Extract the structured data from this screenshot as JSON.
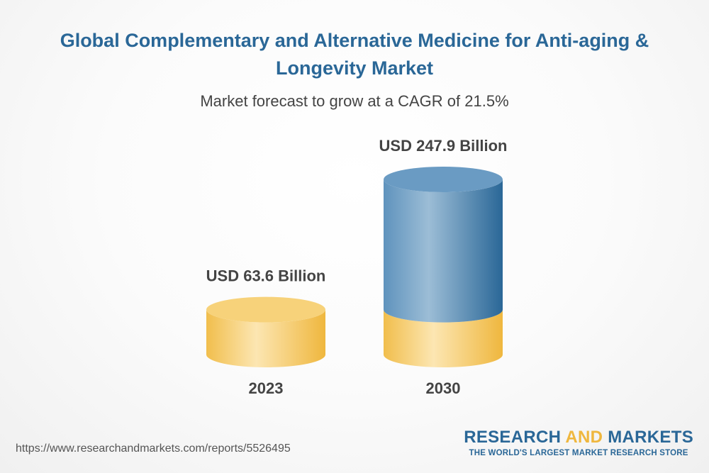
{
  "header": {
    "title": "Global Complementary and Alternative Medicine for Anti-aging & Longevity Market",
    "subtitle": "Market forecast to grow at a CAGR of 21.5%"
  },
  "chart_data": {
    "type": "bar",
    "title": "Global Complementary and Alternative Medicine for Anti-aging & Longevity Market",
    "subtitle": "Market forecast to grow at a CAGR of 21.5%",
    "categories": [
      "2023",
      "2030"
    ],
    "values": [
      63.6,
      247.9
    ],
    "data_labels": [
      "USD 63.6 Billion",
      "USD 247.9 Billion"
    ],
    "unit": "USD Billion",
    "cagr_percent": 21.5,
    "xlabel": "",
    "ylabel": "",
    "grid": false,
    "colors": {
      "base": "#efb73e",
      "base_light": "#fbe1a4",
      "growth": "#2c6a9b",
      "growth_light": "#8fb4d1"
    }
  },
  "footer": {
    "url": "https://www.researchandmarkets.com/reports/5526495",
    "brand_part1": "RESEARCH ",
    "brand_part2": "AND",
    "brand_part3": " MARKETS",
    "tagline": "THE WORLD'S LARGEST MARKET RESEARCH STORE"
  }
}
